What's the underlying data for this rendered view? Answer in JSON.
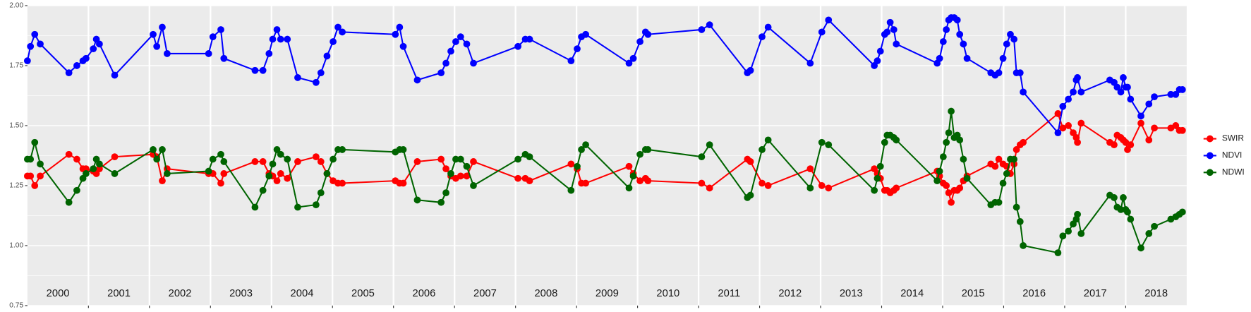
{
  "chart_data": {
    "type": "line",
    "x": [
      2000.0,
      2000.05,
      2000.12,
      2000.21,
      2000.68,
      2000.81,
      2000.91,
      2000.96,
      2001.08,
      2001.13,
      2001.18,
      2001.43,
      2002.06,
      2002.12,
      2002.21,
      2002.29,
      2002.97,
      2003.04,
      2003.17,
      2003.22,
      2003.73,
      2003.86,
      2003.96,
      2004.02,
      2004.09,
      2004.15,
      2004.26,
      2004.43,
      2004.73,
      2004.81,
      2004.91,
      2005.01,
      2005.09,
      2005.16,
      2006.03,
      2006.1,
      2006.16,
      2006.39,
      2006.78,
      2006.86,
      2006.94,
      2007.02,
      2007.1,
      2007.2,
      2007.31,
      2008.04,
      2008.16,
      2008.23,
      2008.91,
      2009.01,
      2009.08,
      2009.15,
      2009.86,
      2009.93,
      2010.04,
      2010.13,
      2010.17,
      2011.05,
      2011.18,
      2011.8,
      2011.85,
      2012.04,
      2012.14,
      2012.83,
      2013.02,
      2013.13,
      2013.88,
      2013.93,
      2013.98,
      2014.05,
      2014.09,
      2014.14,
      2014.2,
      2014.24,
      2014.91,
      2014.95,
      2015.01,
      2015.06,
      2015.1,
      2015.14,
      2015.19,
      2015.24,
      2015.28,
      2015.34,
      2015.4,
      2015.79,
      2015.86,
      2015.92,
      2015.99,
      2016.05,
      2016.11,
      2016.17,
      2016.21,
      2016.27,
      2016.32,
      2016.89,
      2016.97,
      2017.06,
      2017.14,
      2017.19,
      2017.21,
      2017.27,
      2017.74,
      2017.81,
      2017.86,
      2017.92,
      2017.96,
      2018.0,
      2018.03,
      2018.08,
      2018.25,
      2018.38,
      2018.47,
      2018.74,
      2018.82,
      2018.88,
      2018.93
    ],
    "series": [
      {
        "name": "SWIR",
        "color": "#ff0000",
        "values": [
          1.29,
          1.29,
          1.25,
          1.29,
          1.38,
          1.36,
          1.32,
          1.32,
          1.31,
          1.3,
          1.32,
          1.37,
          1.38,
          1.37,
          1.27,
          1.32,
          1.3,
          1.3,
          1.26,
          1.3,
          1.35,
          1.35,
          1.3,
          1.29,
          1.27,
          1.3,
          1.28,
          1.35,
          1.37,
          1.35,
          1.3,
          1.27,
          1.26,
          1.26,
          1.27,
          1.26,
          1.26,
          1.35,
          1.36,
          1.32,
          1.29,
          1.28,
          1.29,
          1.29,
          1.35,
          1.28,
          1.28,
          1.27,
          1.34,
          1.32,
          1.26,
          1.26,
          1.33,
          1.3,
          1.27,
          1.28,
          1.27,
          1.26,
          1.24,
          1.36,
          1.35,
          1.26,
          1.25,
          1.32,
          1.25,
          1.24,
          1.32,
          1.3,
          1.28,
          1.23,
          1.23,
          1.22,
          1.23,
          1.24,
          1.31,
          1.29,
          1.26,
          1.25,
          1.22,
          1.18,
          1.23,
          1.23,
          1.24,
          1.27,
          1.29,
          1.34,
          1.33,
          1.36,
          1.34,
          1.33,
          1.3,
          1.34,
          1.4,
          1.42,
          1.43,
          1.55,
          1.49,
          1.5,
          1.47,
          1.45,
          1.43,
          1.51,
          1.43,
          1.42,
          1.46,
          1.45,
          1.44,
          1.43,
          1.4,
          1.42,
          1.51,
          1.44,
          1.49,
          1.49,
          1.5,
          1.48,
          1.48
        ]
      },
      {
        "name": "NDVI",
        "color": "#0000ff",
        "values": [
          1.77,
          1.83,
          1.88,
          1.84,
          1.72,
          1.75,
          1.77,
          1.78,
          1.82,
          1.86,
          1.84,
          1.71,
          1.88,
          1.83,
          1.91,
          1.8,
          1.8,
          1.87,
          1.9,
          1.78,
          1.73,
          1.73,
          1.8,
          1.86,
          1.9,
          1.86,
          1.86,
          1.7,
          1.68,
          1.72,
          1.79,
          1.85,
          1.91,
          1.89,
          1.88,
          1.91,
          1.83,
          1.69,
          1.72,
          1.76,
          1.81,
          1.85,
          1.87,
          1.84,
          1.76,
          1.83,
          1.86,
          1.86,
          1.77,
          1.82,
          1.87,
          1.88,
          1.76,
          1.78,
          1.85,
          1.89,
          1.88,
          1.9,
          1.92,
          1.72,
          1.73,
          1.87,
          1.91,
          1.76,
          1.89,
          1.94,
          1.75,
          1.77,
          1.81,
          1.88,
          1.89,
          1.93,
          1.9,
          1.84,
          1.76,
          1.78,
          1.85,
          1.9,
          1.94,
          1.95,
          1.95,
          1.94,
          1.88,
          1.84,
          1.78,
          1.72,
          1.71,
          1.72,
          1.78,
          1.84,
          1.88,
          1.86,
          1.72,
          1.72,
          1.64,
          1.47,
          1.58,
          1.61,
          1.64,
          1.69,
          1.7,
          1.64,
          1.69,
          1.68,
          1.66,
          1.64,
          1.7,
          1.66,
          1.66,
          1.61,
          1.54,
          1.59,
          1.62,
          1.63,
          1.63,
          1.65,
          1.65
        ]
      },
      {
        "name": "NDWI",
        "color": "#006400",
        "values": [
          1.36,
          1.36,
          1.43,
          1.34,
          1.18,
          1.23,
          1.28,
          1.3,
          1.32,
          1.36,
          1.34,
          1.3,
          1.4,
          1.36,
          1.4,
          1.3,
          1.31,
          1.36,
          1.38,
          1.35,
          1.16,
          1.23,
          1.29,
          1.34,
          1.4,
          1.38,
          1.36,
          1.16,
          1.17,
          1.22,
          1.3,
          1.36,
          1.4,
          1.4,
          1.39,
          1.4,
          1.4,
          1.19,
          1.18,
          1.22,
          1.3,
          1.36,
          1.36,
          1.33,
          1.25,
          1.36,
          1.38,
          1.37,
          1.23,
          1.33,
          1.4,
          1.42,
          1.24,
          1.29,
          1.38,
          1.4,
          1.4,
          1.37,
          1.42,
          1.2,
          1.21,
          1.4,
          1.44,
          1.24,
          1.43,
          1.42,
          1.23,
          1.28,
          1.33,
          1.43,
          1.46,
          1.46,
          1.45,
          1.44,
          1.27,
          1.31,
          1.37,
          1.43,
          1.47,
          1.56,
          1.45,
          1.46,
          1.44,
          1.36,
          1.28,
          1.17,
          1.18,
          1.18,
          1.26,
          1.3,
          1.36,
          1.36,
          1.16,
          1.1,
          1.0,
          0.97,
          1.04,
          1.06,
          1.09,
          1.11,
          1.13,
          1.05,
          1.21,
          1.2,
          1.16,
          1.15,
          1.2,
          1.15,
          1.14,
          1.11,
          0.99,
          1.05,
          1.08,
          1.11,
          1.12,
          1.13,
          1.14
        ]
      }
    ],
    "xlim": [
      2000,
      2019
    ],
    "xticks": [
      2001,
      2002,
      2003,
      2004,
      2005,
      2006,
      2007,
      2008,
      2009,
      2010,
      2011,
      2012,
      2013,
      2014,
      2015,
      2016,
      2017,
      2018
    ],
    "year_labels": [
      {
        "value": 2000.5,
        "label": "2000"
      },
      {
        "value": 2001.5,
        "label": "2001"
      },
      {
        "value": 2002.5,
        "label": "2002"
      },
      {
        "value": 2003.5,
        "label": "2003"
      },
      {
        "value": 2004.5,
        "label": "2004"
      },
      {
        "value": 2005.5,
        "label": "2005"
      },
      {
        "value": 2006.5,
        "label": "2006"
      },
      {
        "value": 2007.5,
        "label": "2007"
      },
      {
        "value": 2008.5,
        "label": "2008"
      },
      {
        "value": 2009.5,
        "label": "2009"
      },
      {
        "value": 2010.5,
        "label": "2010"
      },
      {
        "value": 2011.5,
        "label": "2011"
      },
      {
        "value": 2012.5,
        "label": "2012"
      },
      {
        "value": 2013.5,
        "label": "2013"
      },
      {
        "value": 2014.5,
        "label": "2014"
      },
      {
        "value": 2015.5,
        "label": "2015"
      },
      {
        "value": 2016.5,
        "label": "2016"
      },
      {
        "value": 2017.5,
        "label": "2017"
      },
      {
        "value": 2018.5,
        "label": "2018"
      }
    ],
    "ylim": [
      0.75,
      2.0
    ],
    "yticks": [
      {
        "value": 0.75,
        "label": "0.75"
      },
      {
        "value": 1.0,
        "label": "1.00"
      },
      {
        "value": 1.25,
        "label": "1.25"
      },
      {
        "value": 1.5,
        "label": "1.50"
      },
      {
        "value": 1.75,
        "label": "1.75"
      },
      {
        "value": 2.0,
        "label": "2.00"
      }
    ],
    "grid": true,
    "legend": "right"
  }
}
